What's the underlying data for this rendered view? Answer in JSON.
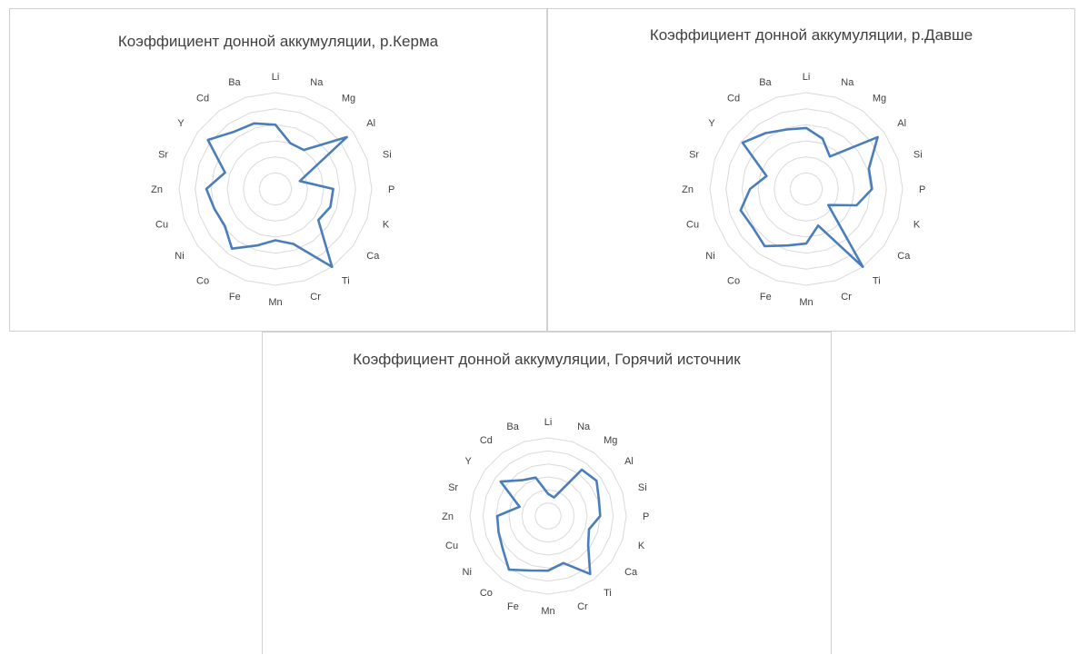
{
  "chart_data": [
    {
      "type": "radar",
      "title": "Коэффициент донной аккумуляции, р.Керма",
      "categories": [
        "Li",
        "Na",
        "Mg",
        "Al",
        "Si",
        "P",
        "K",
        "Ca",
        "Ti",
        "Cr",
        "Mn",
        "Fe",
        "Co",
        "Ni",
        "Cu",
        "Zn",
        "Sr",
        "Y",
        "Cd",
        "Ba"
      ],
      "rmax": 6,
      "grid_rings": 6,
      "axis_labels": false,
      "legend": "none",
      "series": [
        {
          "values": [
            4,
            3,
            3,
            5.5,
            1.6,
            3.6,
            3.6,
            3.3,
            6,
            3.6,
            3.2,
            3.7,
            4.6,
            3.9,
            4,
            4.3,
            3.3,
            5.2,
            4.4,
            4.3
          ]
        }
      ]
    },
    {
      "type": "radar",
      "title": "Коэффициент донной аккумуляции, р.Давше",
      "categories": [
        "Li",
        "Na",
        "Mg",
        "Al",
        "Si",
        "P",
        "K",
        "Ca",
        "Ti",
        "Cr",
        "Mn",
        "Fe",
        "Co",
        "Ni",
        "Cu",
        "Zn",
        "Sr",
        "Y",
        "Cd",
        "Ba"
      ],
      "rmax": 6,
      "grid_rings": 6,
      "axis_labels": false,
      "legend": "none",
      "series": [
        {
          "values": [
            3.8,
            3.3,
            2.5,
            5.5,
            4.1,
            4.1,
            3.3,
            1.7,
            6,
            2.4,
            3.4,
            3.7,
            4.4,
            4.1,
            4.3,
            3.5,
            2.6,
            4.9,
            4.3,
            3.9
          ]
        }
      ]
    },
    {
      "type": "radar",
      "title": "Коэффициент донной аккумуляции, Горячий источник",
      "categories": [
        "Li",
        "Na",
        "Mg",
        "Al",
        "Si",
        "P",
        "K",
        "Ca",
        "Ti",
        "Cr",
        "Mn",
        "Fe",
        "Co",
        "Ni",
        "Cu",
        "Zn",
        "Sr",
        "Y",
        "Cd",
        "Ba"
      ],
      "rmax": 6,
      "grid_rings": 6,
      "axis_labels": false,
      "legend": "none",
      "series": [
        {
          "values": [
            1.7,
            1.5,
            4.4,
            4.6,
            4.1,
            4,
            3.3,
            3.8,
            5.5,
            3.8,
            4.2,
            4.4,
            5.1,
            4.3,
            4,
            3.9,
            2.3,
            4.5,
            3.4,
            3.1
          ]
        }
      ]
    }
  ]
}
